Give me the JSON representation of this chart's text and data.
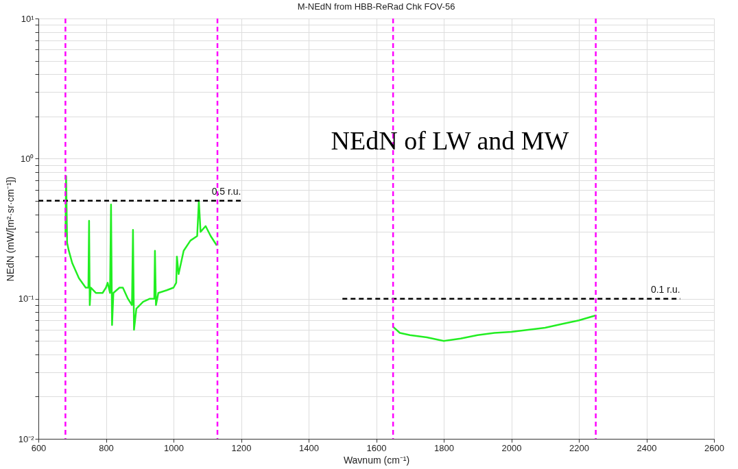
{
  "chart_data": {
    "type": "line",
    "title": "M-NEdN from HBB-ReRad Chk FOV-56",
    "xlabel": "Wavnum (cm⁻¹)",
    "ylabel": "NEdN (mW/[m²·sr·cm⁻¹])",
    "xlim": [
      600,
      2600
    ],
    "xticks": [
      600,
      800,
      1000,
      1200,
      1400,
      1600,
      1800,
      2000,
      2200,
      2400,
      2600
    ],
    "ylim": [
      0.01,
      10
    ],
    "log": "y",
    "grid": true,
    "yticks": [
      {
        "value": 0.01,
        "label": "10⁻²"
      },
      {
        "value": 0.02,
        "label": null
      },
      {
        "value": 0.03,
        "label": null
      },
      {
        "value": 0.04,
        "label": null
      },
      {
        "value": 0.05,
        "label": null
      },
      {
        "value": 0.06,
        "label": null
      },
      {
        "value": 0.07,
        "label": null
      },
      {
        "value": 0.08,
        "label": null
      },
      {
        "value": 0.09,
        "label": null
      },
      {
        "value": 0.1,
        "label": "10⁻¹"
      },
      {
        "value": 0.2,
        "label": null
      },
      {
        "value": 0.3,
        "label": null
      },
      {
        "value": 0.4,
        "label": null
      },
      {
        "value": 0.5,
        "label": null
      },
      {
        "value": 0.6,
        "label": null
      },
      {
        "value": 0.7,
        "label": null
      },
      {
        "value": 0.8,
        "label": null
      },
      {
        "value": 0.9,
        "label": null
      },
      {
        "value": 1,
        "label": "10⁰"
      },
      {
        "value": 2,
        "label": null
      },
      {
        "value": 3,
        "label": null
      },
      {
        "value": 4,
        "label": null
      },
      {
        "value": 5,
        "label": null
      },
      {
        "value": 6,
        "label": null
      },
      {
        "value": 7,
        "label": null
      },
      {
        "value": 8,
        "label": null
      },
      {
        "value": 9,
        "label": null
      },
      {
        "value": 10,
        "label": "10¹"
      }
    ],
    "series": [
      {
        "color": "#22ee22",
        "x": [
          680,
          682,
          685,
          690,
          700,
          720,
          740,
          748,
          750,
          752,
          755,
          770,
          790,
          800,
          805,
          812,
          815,
          818,
          822,
          840,
          850,
          865,
          877,
          880,
          883,
          890,
          910,
          930,
          943,
          945,
          948,
          955,
          980,
          1000,
          1008,
          1010,
          1015,
          1030,
          1050,
          1070,
          1075,
          1080,
          1095,
          1110,
          1128
        ],
        "values": [
          0.28,
          0.75,
          0.25,
          0.22,
          0.18,
          0.14,
          0.12,
          0.12,
          0.36,
          0.09,
          0.12,
          0.11,
          0.11,
          0.12,
          0.13,
          0.11,
          0.47,
          0.065,
          0.11,
          0.12,
          0.12,
          0.1,
          0.09,
          0.31,
          0.06,
          0.085,
          0.095,
          0.1,
          0.1,
          0.22,
          0.09,
          0.11,
          0.115,
          0.12,
          0.13,
          0.2,
          0.15,
          0.22,
          0.26,
          0.28,
          0.5,
          0.3,
          0.33,
          0.28,
          0.24
        ]
      },
      {
        "color": "#22ee22",
        "x": [
          1650,
          1670,
          1700,
          1750,
          1800,
          1850,
          1900,
          1950,
          2000,
          2050,
          2100,
          2150,
          2200,
          2250
        ],
        "values": [
          0.063,
          0.057,
          0.055,
          0.053,
          0.05,
          0.052,
          0.055,
          0.057,
          0.058,
          0.06,
          0.062,
          0.066,
          0.07,
          0.076
        ]
      },
      {
        "type": "line",
        "color": "#000000",
        "line_style": "dashed",
        "marker": "none",
        "x": [
          600,
          1200
        ],
        "values": [
          0.5,
          0.5
        ]
      },
      {
        "type": "line",
        "color": "#000000",
        "line_style": "dashed",
        "marker": "none",
        "x": [
          1500,
          2500
        ],
        "values": [
          0.1,
          0.1
        ]
      }
    ],
    "ref_lines": [
      {
        "axis": "x",
        "value": 680,
        "color": "#ff00ff",
        "line_style": "dashed"
      },
      {
        "axis": "x",
        "value": 1130,
        "color": "#ff00ff",
        "line_style": "dashed"
      },
      {
        "axis": "x",
        "value": 1650,
        "color": "#ff00ff",
        "line_style": "dashed"
      },
      {
        "axis": "x",
        "value": 2250,
        "color": "#ff00ff",
        "line_style": "dashed"
      }
    ],
    "annotations": [
      {
        "text": "0.5 r.u.",
        "x": 1200,
        "y": 0.5
      },
      {
        "text": "0.1 r.u.",
        "x": 2500,
        "y": 0.1
      },
      "NEdN of LW and MW"
    ]
  }
}
